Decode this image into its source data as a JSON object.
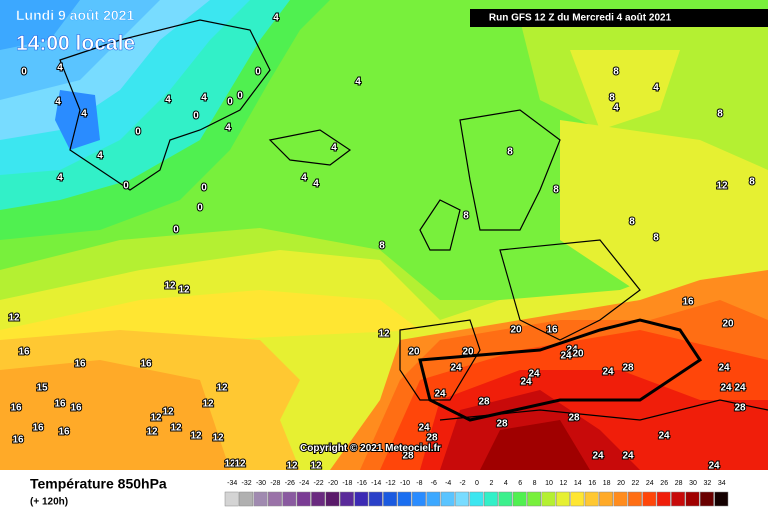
{
  "header": {
    "date": "Lundi 9 août 2021",
    "time": "14:00 locale",
    "run": "Run GFS 12 Z du Mercredi 4 août 2021"
  },
  "copyright": "Copyright © 2021 Meteociel.fr",
  "legend": {
    "title": "Température 850hPa",
    "lead": "(+ 120h)",
    "values": [
      -34,
      -32,
      -30,
      -28,
      -26,
      -24,
      -22,
      -20,
      -18,
      -16,
      -14,
      -12,
      -10,
      -8,
      -6,
      -4,
      -2,
      0,
      2,
      4,
      6,
      8,
      10,
      12,
      14,
      16,
      18,
      20,
      22,
      24,
      26,
      28,
      30,
      32,
      34
    ],
    "colors": [
      "#d4d4d4",
      "#b0b0b0",
      "#a08ab0",
      "#9a72a8",
      "#8a5aa0",
      "#7a3c94",
      "#6a2a80",
      "#5a1a6a",
      "#5a2a9a",
      "#3c2ab4",
      "#2a40c8",
      "#1a5ae0",
      "#1a6ef0",
      "#2a8cff",
      "#3ca8ff",
      "#5ac4ff",
      "#78dcff",
      "#3ce6f0",
      "#32f0c8",
      "#3cf08c",
      "#50f050",
      "#78f03c",
      "#b4f032",
      "#e6f032",
      "#ffe632",
      "#ffc832",
      "#ffaa28",
      "#ff8c1e",
      "#ff6e14",
      "#ff460a",
      "#f01e0a",
      "#c80a0a",
      "#a00000",
      "#6a0000",
      "#140000"
    ]
  },
  "map": {
    "contour_labels": [
      0,
      4,
      4,
      4,
      0,
      4,
      4,
      0,
      0,
      0,
      4,
      0,
      4,
      4,
      4,
      4,
      4,
      4,
      4,
      0,
      0,
      0,
      0,
      12,
      12,
      12,
      16,
      16,
      16,
      15,
      12,
      16,
      16,
      16,
      12,
      12,
      12,
      16,
      16,
      16,
      12,
      12,
      12,
      12,
      12,
      12,
      12,
      12,
      12,
      8,
      8,
      8,
      8,
      8,
      8,
      8,
      8,
      4,
      4,
      8,
      8,
      12,
      16,
      20,
      20,
      16,
      20,
      20,
      24,
      20,
      24,
      24,
      28,
      24,
      24,
      24,
      24,
      28,
      24,
      28,
      28,
      24,
      24,
      24,
      28,
      24,
      24,
      24,
      24,
      28,
      28
    ]
  }
}
